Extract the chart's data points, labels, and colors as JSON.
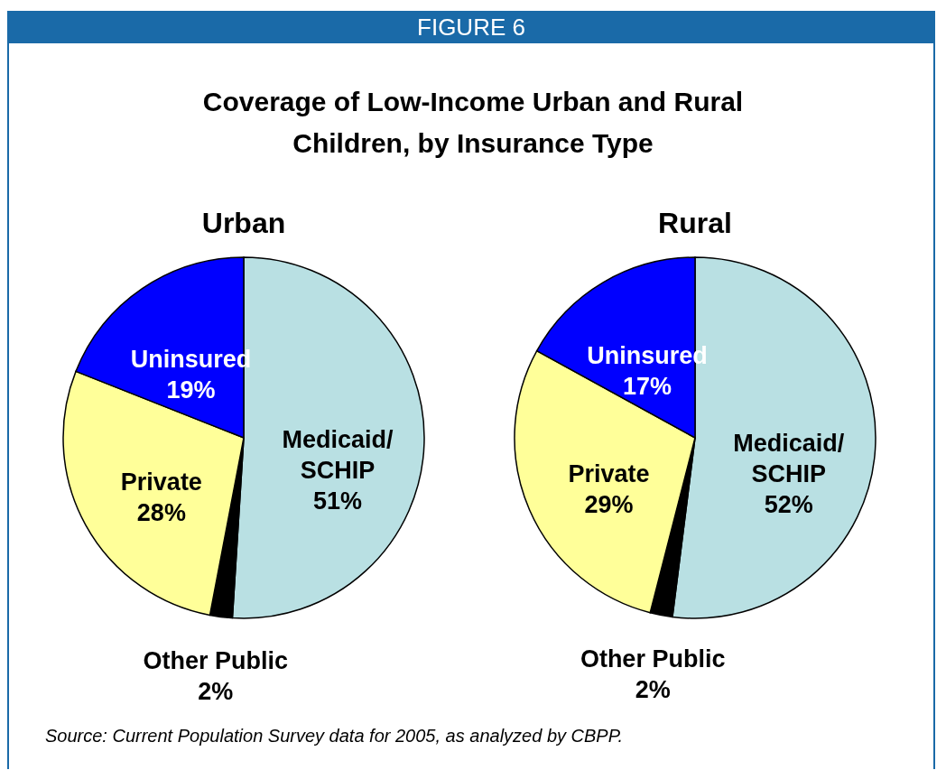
{
  "chart_data": [
    {
      "type": "other",
      "title": "FIGURE 6",
      "subtitle": "Coverage of Low-Income Urban and Rural Children, by Insurance Type"
    },
    {
      "type": "pie",
      "title": "Urban",
      "categories": [
        "Medicaid/SCHIP",
        "Other Public",
        "Private",
        "Uninsured"
      ],
      "values": [
        51,
        2,
        28,
        19
      ],
      "value_labels": [
        "51%",
        "2%",
        "28%",
        "19%"
      ],
      "colors": [
        "#b9e0e3",
        "#000000",
        "#ffff99",
        "#0000ff"
      ],
      "annotations": [
        "Source: Current Population Survey data for 2005, as analyzed by CBPP."
      ]
    },
    {
      "type": "pie",
      "title": "Rural",
      "categories": [
        "Medicaid/SCHIP",
        "Other Public",
        "Private",
        "Uninsured"
      ],
      "values": [
        52,
        2,
        29,
        17
      ],
      "value_labels": [
        "52%",
        "2%",
        "29%",
        "17%"
      ],
      "colors": [
        "#b9e0e3",
        "#000000",
        "#ffff99",
        "#0000ff"
      ]
    }
  ]
}
